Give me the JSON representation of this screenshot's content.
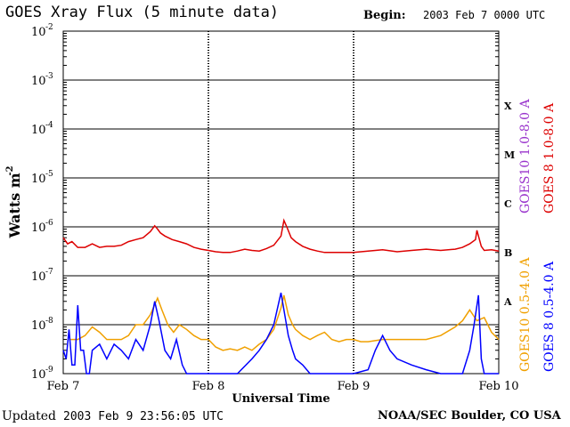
{
  "header": {
    "title": "GOES Xray Flux (5 minute data)",
    "begin_label": "Begin:",
    "begin_value": "2003 Feb 7 0000 UTC"
  },
  "footer": {
    "updated_label": "Updated",
    "updated_value": "2003 Feb  9 23:56:05 UTC",
    "credit": "NOAA/SEC Boulder, CO USA"
  },
  "chart_data": {
    "type": "line",
    "title": "GOES Xray Flux (5 minute data)",
    "xlabel": "Universal Time",
    "ylabel": "Watts m",
    "ylabel_sup": "-2",
    "yscale": "log",
    "ylim": [
      1e-09,
      0.01
    ],
    "xlim": [
      "2003-02-07",
      "2003-02-10"
    ],
    "x_ticks": [
      "Feb 7",
      "Feb 8",
      "Feb 9",
      "Feb 10"
    ],
    "y_ticks": [
      {
        "base": "10",
        "exp": "-9",
        "value": 1e-09
      },
      {
        "base": "10",
        "exp": "-8",
        "value": 1e-08
      },
      {
        "base": "10",
        "exp": "-7",
        "value": 1e-07
      },
      {
        "base": "10",
        "exp": "-6",
        "value": 1e-06
      },
      {
        "base": "10",
        "exp": "-5",
        "value": 1e-05
      },
      {
        "base": "10",
        "exp": "-4",
        "value": 0.0001
      },
      {
        "base": "10",
        "exp": "-3",
        "value": 0.001
      },
      {
        "base": "10",
        "exp": "-2",
        "value": 0.01
      }
    ],
    "flare_classes": [
      {
        "label": "X",
        "value": 0.0003
      },
      {
        "label": "M",
        "value": 3e-05
      },
      {
        "label": "C",
        "value": 3e-06
      },
      {
        "label": "B",
        "value": 3e-07
      },
      {
        "label": "A",
        "value": 3e-08
      }
    ],
    "grid": true,
    "legend": [
      {
        "name": "GOES10 1.0-8.0 A",
        "color": "#9933cc"
      },
      {
        "name": "GOES 8 1.0-8.0 A",
        "color": "#dd0000"
      },
      {
        "name": "GOES10 0.5-4.0 A",
        "color": "#f0a000"
      },
      {
        "name": "GOES 8 0.5-4.0 A",
        "color": "#0000ff"
      }
    ],
    "series": [
      {
        "name": "GOES 8 1.0-8.0 A",
        "color": "#dd0000",
        "x": [
          0,
          0.03,
          0.06,
          0.1,
          0.15,
          0.2,
          0.25,
          0.3,
          0.35,
          0.4,
          0.45,
          0.5,
          0.55,
          0.6,
          0.63,
          0.65,
          0.67,
          0.7,
          0.75,
          0.8,
          0.85,
          0.9,
          0.95,
          1.0,
          1.05,
          1.1,
          1.15,
          1.2,
          1.25,
          1.3,
          1.35,
          1.4,
          1.45,
          1.5,
          1.52,
          1.54,
          1.57,
          1.6,
          1.65,
          1.7,
          1.75,
          1.8,
          1.85,
          1.9,
          2.0,
          2.1,
          2.2,
          2.3,
          2.4,
          2.5,
          2.6,
          2.7,
          2.75,
          2.8,
          2.84,
          2.85,
          2.88,
          2.9,
          2.95,
          3.0
        ],
        "values": [
          6e-07,
          4.5e-07,
          5e-07,
          3.8e-07,
          3.8e-07,
          4.5e-07,
          3.8e-07,
          4e-07,
          4e-07,
          4.2e-07,
          5e-07,
          5.5e-07,
          6e-07,
          8e-07,
          1.05e-06,
          9e-07,
          7.5e-07,
          6.5e-07,
          5.5e-07,
          5e-07,
          4.5e-07,
          3.8e-07,
          3.5e-07,
          3.3e-07,
          3.1e-07,
          3e-07,
          3e-07,
          3.2e-07,
          3.5e-07,
          3.3e-07,
          3.2e-07,
          3.6e-07,
          4.2e-07,
          6.5e-07,
          1.35e-06,
          1e-06,
          6e-07,
          5e-07,
          4e-07,
          3.5e-07,
          3.2e-07,
          3e-07,
          3e-07,
          3e-07,
          3e-07,
          3.2e-07,
          3.4e-07,
          3.1e-07,
          3.3e-07,
          3.5e-07,
          3.3e-07,
          3.5e-07,
          3.8e-07,
          4.5e-07,
          5.5e-07,
          8.5e-07,
          4e-07,
          3.3e-07,
          3.4e-07,
          3.2e-07
        ]
      },
      {
        "name": "GOES10 0.5-4.0 A",
        "color": "#f0a000",
        "x": [
          0.05,
          0.1,
          0.15,
          0.2,
          0.25,
          0.3,
          0.35,
          0.4,
          0.45,
          0.5,
          0.55,
          0.6,
          0.65,
          0.68,
          0.72,
          0.76,
          0.8,
          0.85,
          0.9,
          0.95,
          1.0,
          1.05,
          1.1,
          1.15,
          1.2,
          1.25,
          1.3,
          1.35,
          1.4,
          1.45,
          1.5,
          1.52,
          1.55,
          1.58,
          1.6,
          1.65,
          1.7,
          1.75,
          1.8,
          1.85,
          1.9,
          1.95,
          2.0,
          2.05,
          2.1,
          2.2,
          2.3,
          2.4,
          2.5,
          2.6,
          2.7,
          2.75,
          2.8,
          2.85,
          2.9,
          2.95,
          3.0
        ],
        "values": [
          5e-09,
          5e-09,
          6e-09,
          9e-09,
          7e-09,
          5e-09,
          5e-09,
          5e-09,
          6e-09,
          1e-08,
          1e-08,
          1.6e-08,
          3.5e-08,
          2e-08,
          1e-08,
          7e-09,
          1e-08,
          8e-09,
          6e-09,
          5e-09,
          5e-09,
          3.5e-09,
          3e-09,
          3.2e-09,
          3e-09,
          3.5e-09,
          3e-09,
          4e-09,
          5e-09,
          8e-09,
          2.2e-08,
          4e-08,
          1.6e-08,
          1e-08,
          8e-09,
          6e-09,
          5e-09,
          6e-09,
          7e-09,
          5e-09,
          4.5e-09,
          5e-09,
          5e-09,
          4.5e-09,
          4.5e-09,
          5e-09,
          5e-09,
          5e-09,
          5e-09,
          6e-09,
          9e-09,
          1.2e-08,
          2e-08,
          1.2e-08,
          1.4e-08,
          7e-09,
          5e-09
        ]
      },
      {
        "name": "GOES 8 0.5-4.0 A",
        "color": "#0000ff",
        "x": [
          0.0,
          0.02,
          0.04,
          0.06,
          0.08,
          0.1,
          0.12,
          0.14,
          0.16,
          0.18,
          0.2,
          0.25,
          0.3,
          0.35,
          0.4,
          0.45,
          0.5,
          0.55,
          0.6,
          0.63,
          0.66,
          0.7,
          0.74,
          0.78,
          0.82,
          0.85,
          0.9,
          0.95,
          1.0,
          1.1,
          1.2,
          1.3,
          1.35,
          1.4,
          1.45,
          1.5,
          1.52,
          1.55,
          1.58,
          1.6,
          1.65,
          1.7,
          1.75,
          1.8,
          1.9,
          2.0,
          2.1,
          2.15,
          2.2,
          2.25,
          2.3,
          2.4,
          2.5,
          2.6,
          2.7,
          2.75,
          2.8,
          2.83,
          2.86,
          2.88,
          2.9,
          2.95,
          3.0
        ],
        "values": [
          3e-09,
          2e-09,
          8e-09,
          1.5e-09,
          1.5e-09,
          2.5e-08,
          3e-09,
          3e-09,
          1e-09,
          1e-09,
          3e-09,
          4e-09,
          2e-09,
          4e-09,
          3e-09,
          2e-09,
          5e-09,
          3e-09,
          1e-08,
          3e-08,
          1.2e-08,
          3e-09,
          2e-09,
          5e-09,
          1.5e-09,
          1e-09,
          1e-09,
          1e-09,
          1e-09,
          1e-09,
          1e-09,
          2e-09,
          3e-09,
          5e-09,
          1e-08,
          4.5e-08,
          2e-08,
          6e-09,
          3e-09,
          2e-09,
          1.5e-09,
          1e-09,
          1e-09,
          1e-09,
          1e-09,
          1e-09,
          1.2e-09,
          3e-09,
          6e-09,
          3e-09,
          2e-09,
          1.5e-09,
          1.2e-09,
          1e-09,
          1e-09,
          1e-09,
          3e-09,
          1e-08,
          4e-08,
          2e-09,
          1e-09,
          1e-09,
          1e-09
        ]
      }
    ]
  }
}
